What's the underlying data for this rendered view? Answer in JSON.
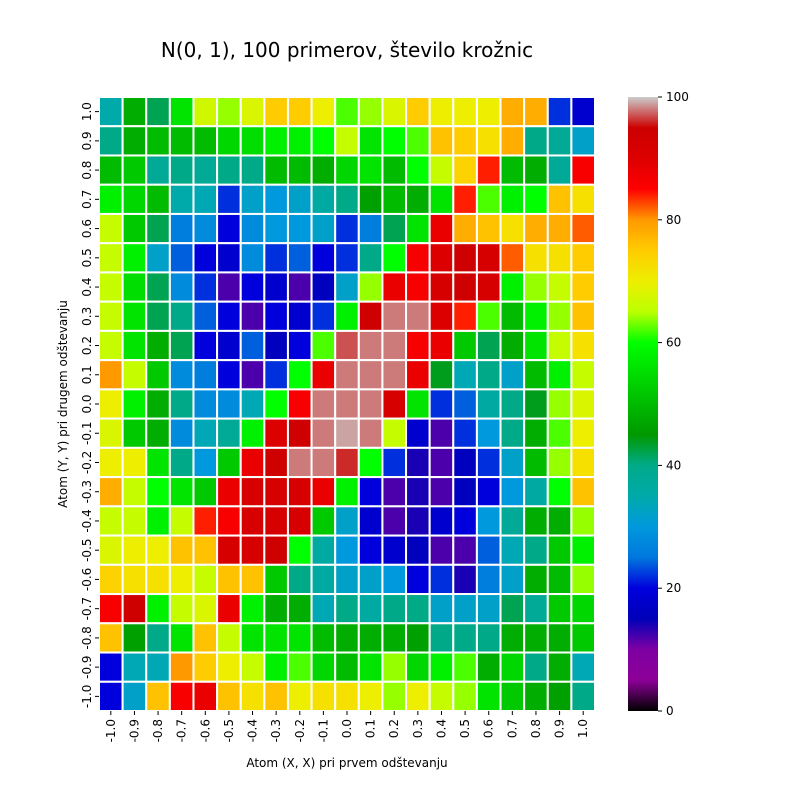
{
  "chart_data": {
    "type": "heatmap",
    "title": "N(0, 1), 100 primerov, število krožnic",
    "xlabel": "Atom (X, X) pri prvem odštevanju",
    "ylabel": "Atom (Y, Y) pri drugem odštevanju",
    "x_categories": [
      "-1.0",
      "-0.9",
      "-0.8",
      "-0.7",
      "-0.6",
      "-0.5",
      "-0.4",
      "-0.3",
      "-0.2",
      "-0.1",
      "0.0",
      "0.1",
      "0.2",
      "0.3",
      "0.4",
      "0.5",
      "0.6",
      "0.7",
      "0.8",
      "0.9",
      "1.0"
    ],
    "y_categories": [
      "1.0",
      "0.9",
      "0.8",
      "0.7",
      "0.6",
      "0.5",
      "0.4",
      "0.3",
      "0.2",
      "0.1",
      "0.0",
      "-0.1",
      "-0.2",
      "-0.3",
      "-0.4",
      "-0.5",
      "-0.6",
      "-0.7",
      "-0.8",
      "-0.9",
      "-1.0"
    ],
    "values": [
      [
        35,
        48,
        42,
        56,
        67,
        64,
        68,
        75,
        75,
        70,
        62,
        64,
        68,
        75,
        70,
        70,
        70,
        78,
        78,
        22,
        18
      ],
      [
        40,
        48,
        50,
        50,
        50,
        54,
        55,
        58,
        58,
        60,
        66,
        56,
        60,
        62,
        76,
        75,
        72,
        78,
        40,
        38,
        32
      ],
      [
        50,
        52,
        38,
        40,
        38,
        40,
        40,
        50,
        50,
        48,
        54,
        56,
        50,
        60,
        66,
        74,
        84,
        50,
        48,
        38,
        86
      ],
      [
        58,
        54,
        50,
        35,
        34,
        22,
        32,
        30,
        32,
        36,
        40,
        46,
        50,
        48,
        56,
        84,
        62,
        58,
        60,
        76,
        72
      ],
      [
        66,
        52,
        42,
        26,
        28,
        20,
        28,
        30,
        30,
        32,
        22,
        26,
        42,
        56,
        88,
        78,
        76,
        72,
        78,
        78,
        82
      ],
      [
        66,
        58,
        32,
        24,
        20,
        18,
        28,
        22,
        24,
        20,
        22,
        40,
        60,
        86,
        90,
        94,
        92,
        82,
        72,
        72,
        75
      ],
      [
        66,
        55,
        42,
        28,
        22,
        12,
        20,
        18,
        12,
        16,
        32,
        64,
        88,
        86,
        92,
        94,
        92,
        58,
        64,
        66,
        75
      ],
      [
        66,
        56,
        42,
        40,
        24,
        20,
        12,
        20,
        18,
        22,
        58,
        94,
        98,
        98,
        90,
        84,
        62,
        50,
        58,
        64,
        76
      ],
      [
        66,
        56,
        48,
        42,
        20,
        18,
        24,
        16,
        20,
        62,
        97,
        98,
        98,
        86,
        88,
        52,
        42,
        48,
        56,
        66,
        72
      ],
      [
        80,
        66,
        52,
        28,
        26,
        20,
        12,
        22,
        60,
        88,
        98,
        98,
        98,
        88,
        44,
        34,
        40,
        32,
        50,
        58,
        66
      ],
      [
        70,
        58,
        48,
        40,
        28,
        28,
        34,
        60,
        86,
        98,
        98,
        98,
        92,
        56,
        22,
        24,
        36,
        40,
        44,
        64,
        68
      ],
      [
        68,
        52,
        48,
        28,
        34,
        38,
        58,
        90,
        94,
        98,
        99,
        98,
        66,
        18,
        12,
        22,
        30,
        40,
        48,
        62,
        70
      ],
      [
        70,
        70,
        56,
        40,
        30,
        52,
        88,
        94,
        98,
        98,
        96,
        60,
        22,
        14,
        12,
        16,
        22,
        32,
        50,
        64,
        72
      ],
      [
        78,
        66,
        60,
        56,
        52,
        88,
        92,
        92,
        92,
        88,
        58,
        20,
        12,
        14,
        12,
        16,
        20,
        30,
        36,
        60,
        76
      ],
      [
        66,
        66,
        58,
        66,
        84,
        86,
        92,
        92,
        92,
        52,
        32,
        18,
        12,
        14,
        18,
        20,
        30,
        38,
        48,
        48,
        64
      ],
      [
        68,
        70,
        70,
        76,
        76,
        92,
        92,
        94,
        60,
        36,
        30,
        20,
        18,
        16,
        12,
        12,
        24,
        34,
        40,
        52,
        58
      ],
      [
        74,
        72,
        72,
        70,
        66,
        76,
        76,
        52,
        40,
        36,
        32,
        32,
        30,
        20,
        22,
        14,
        26,
        32,
        48,
        50,
        64
      ],
      [
        86,
        94,
        58,
        66,
        68,
        88,
        58,
        48,
        48,
        34,
        40,
        36,
        40,
        40,
        32,
        32,
        32,
        42,
        38,
        52,
        54
      ],
      [
        76,
        46,
        40,
        56,
        76,
        66,
        56,
        56,
        56,
        50,
        48,
        48,
        48,
        46,
        40,
        40,
        40,
        48,
        48,
        48,
        52
      ],
      [
        20,
        34,
        34,
        80,
        75,
        70,
        66,
        58,
        62,
        54,
        50,
        56,
        64,
        54,
        58,
        62,
        48,
        54,
        40,
        48,
        34
      ],
      [
        20,
        32,
        76,
        86,
        88,
        76,
        72,
        76,
        70,
        72,
        72,
        70,
        64,
        70,
        66,
        64,
        56,
        52,
        48,
        46,
        40
      ]
    ],
    "vmin": 0,
    "vmax": 100,
    "colormap": "nipy_spectral",
    "colorbar_ticks": [
      0,
      20,
      40,
      60,
      80,
      100
    ],
    "cell_separator_color": "#ffffff"
  }
}
